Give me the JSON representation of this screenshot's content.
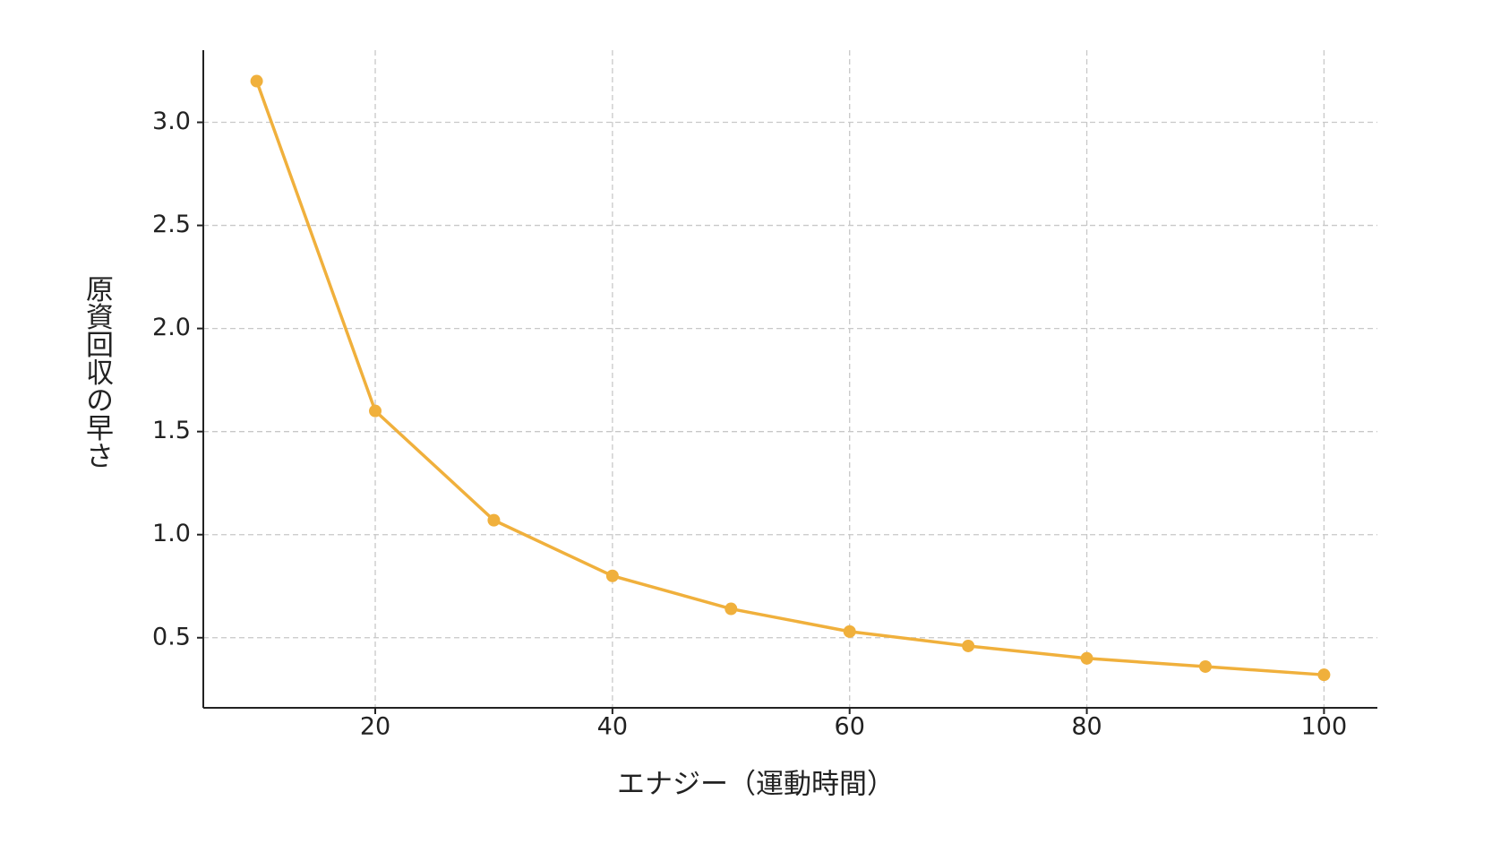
{
  "chart_data": {
    "type": "line",
    "x_label": "エナジー（運動時間）",
    "y_label": "原資回収の早さ",
    "x": [
      10,
      20,
      30,
      40,
      50,
      60,
      70,
      80,
      90,
      100
    ],
    "series": [
      {
        "name": "原資回収の早さ",
        "color": "#f0b03c",
        "values": [
          3.2,
          1.6,
          1.07,
          0.8,
          0.64,
          0.53,
          0.46,
          0.4,
          0.36,
          0.32
        ]
      }
    ],
    "xlim": [
      5.5,
      104.5
    ],
    "ylim": [
      0.16,
      3.35
    ],
    "xticks": [
      20,
      40,
      60,
      80,
      100
    ],
    "yticks": [
      0.5,
      {
        "value": 1,
        "label": "1.0"
      },
      1.5,
      {
        "value": 2,
        "label": "2.0"
      },
      2.5,
      {
        "value": 3,
        "label": "3.0"
      }
    ],
    "grid": true
  }
}
